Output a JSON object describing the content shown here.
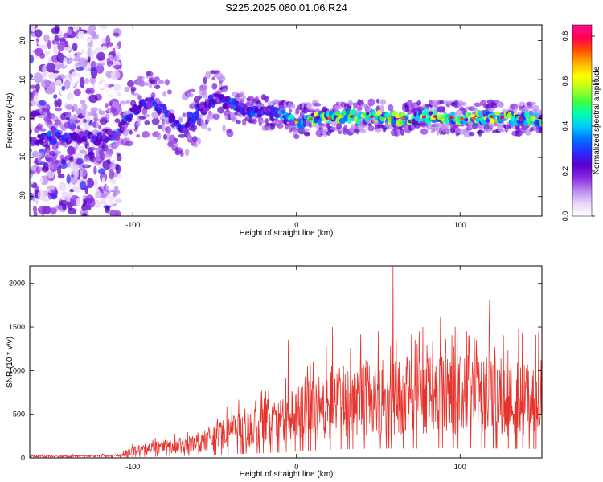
{
  "title": "S225.2025.080.01.06.R24",
  "colors": {
    "snr_line": "#e8332c",
    "colormap": [
      "#ffffff",
      "#e8d4fa",
      "#b98af0",
      "#8a2be2",
      "#5a00c8",
      "#2a2aff",
      "#0070ff",
      "#00c8ff",
      "#00ffb0",
      "#40ff40",
      "#b0ff20",
      "#ffff00",
      "#ffb000",
      "#ff5000",
      "#ff0050",
      "#ff1090"
    ]
  },
  "chart_data": [
    {
      "type": "heatmap",
      "xlabel": "Height of straight line (km)",
      "ylabel": "Frequency (Hz)",
      "xlim": [
        -163,
        150
      ],
      "ylim": [
        -25,
        24
      ],
      "xticks": [
        -100,
        0,
        100
      ],
      "yticks": [
        -20,
        -10,
        0,
        10,
        20
      ],
      "colorbar": {
        "label": "Normalized spectral amplitude",
        "range": [
          0,
          0.85
        ],
        "ticks": [
          "0.0",
          "0.2",
          "0.4",
          "0.6",
          "0.8"
        ]
      },
      "ridge": [
        {
          "x": -163,
          "y": -6
        },
        {
          "x": -150,
          "y": -5
        },
        {
          "x": -140,
          "y": -4.5
        },
        {
          "x": -130,
          "y": -5
        },
        {
          "x": -120,
          "y": -5
        },
        {
          "x": -110,
          "y": -4
        },
        {
          "x": -100,
          "y": 2
        },
        {
          "x": -90,
          "y": 4
        },
        {
          "x": -80,
          "y": 2
        },
        {
          "x": -70,
          "y": -3
        },
        {
          "x": -60,
          "y": 2
        },
        {
          "x": -50,
          "y": 5
        },
        {
          "x": -40,
          "y": 4
        },
        {
          "x": -30,
          "y": 2
        },
        {
          "x": -20,
          "y": 1.5
        },
        {
          "x": -10,
          "y": 1
        },
        {
          "x": 0,
          "y": -1
        },
        {
          "x": 10,
          "y": 0
        },
        {
          "x": 20,
          "y": 0
        },
        {
          "x": 30,
          "y": 0.5
        },
        {
          "x": 40,
          "y": 0.5
        },
        {
          "x": 50,
          "y": 0.5
        },
        {
          "x": 60,
          "y": 0
        },
        {
          "x": 70,
          "y": 0
        },
        {
          "x": 80,
          "y": 0.5
        },
        {
          "x": 90,
          "y": 0.5
        },
        {
          "x": 100,
          "y": 0
        },
        {
          "x": 110,
          "y": 0
        },
        {
          "x": 120,
          "y": 0.5
        },
        {
          "x": 130,
          "y": 0
        },
        {
          "x": 140,
          "y": 0
        },
        {
          "x": 150,
          "y": 0
        }
      ]
    },
    {
      "type": "line",
      "xlabel": "Height of straight line (km)",
      "ylabel": "SNR (10 * v/v)",
      "xlim": [
        -163,
        150
      ],
      "ylim": [
        0,
        2200
      ],
      "xticks": [
        -100,
        0,
        100
      ],
      "yticks": [
        0,
        500,
        1000,
        1500,
        2000
      ],
      "envelope": [
        {
          "x": -163,
          "y": 20
        },
        {
          "x": -140,
          "y": 20
        },
        {
          "x": -110,
          "y": 25
        },
        {
          "x": -100,
          "y": 80
        },
        {
          "x": -80,
          "y": 130
        },
        {
          "x": -60,
          "y": 170
        },
        {
          "x": -45,
          "y": 280
        },
        {
          "x": -30,
          "y": 340
        },
        {
          "x": -20,
          "y": 380
        },
        {
          "x": -10,
          "y": 420
        },
        {
          "x": 0,
          "y": 500
        },
        {
          "x": 10,
          "y": 580
        },
        {
          "x": 20,
          "y": 640
        },
        {
          "x": 30,
          "y": 680
        },
        {
          "x": 40,
          "y": 700
        },
        {
          "x": 50,
          "y": 720
        },
        {
          "x": 60,
          "y": 720
        },
        {
          "x": 70,
          "y": 730
        },
        {
          "x": 80,
          "y": 730
        },
        {
          "x": 90,
          "y": 740
        },
        {
          "x": 100,
          "y": 730
        },
        {
          "x": 110,
          "y": 740
        },
        {
          "x": 120,
          "y": 740
        },
        {
          "x": 130,
          "y": 720
        },
        {
          "x": 140,
          "y": 700
        },
        {
          "x": 150,
          "y": 700
        }
      ],
      "peaks": [
        {
          "x": -5,
          "y": 1350
        },
        {
          "x": 22,
          "y": 1500
        },
        {
          "x": 50,
          "y": 1450
        },
        {
          "x": 59,
          "y": 2190
        },
        {
          "x": 75,
          "y": 1450
        },
        {
          "x": 88,
          "y": 1620
        },
        {
          "x": 97,
          "y": 1500
        },
        {
          "x": 110,
          "y": 1350
        },
        {
          "x": 118,
          "y": 1800
        },
        {
          "x": 138,
          "y": 1430
        },
        {
          "x": 148,
          "y": 1450
        }
      ]
    }
  ]
}
